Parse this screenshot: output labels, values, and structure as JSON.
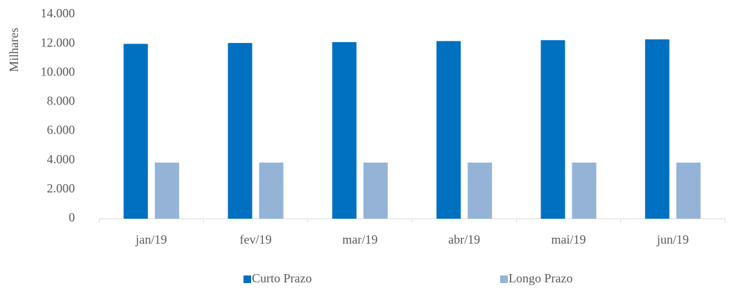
{
  "chart_data": {
    "type": "bar",
    "y_label": "Milhares",
    "categories": [
      "jan/19",
      "fev/19",
      "mar/19",
      "abr/19",
      "mai/19",
      "jun/19"
    ],
    "series": [
      {
        "name": "Curto Prazo",
        "color": "#0070c0",
        "values": [
          11990,
          12050,
          12110,
          12180,
          12240,
          12300
        ]
      },
      {
        "name": "Longo Prazo",
        "color": "#95b3d7",
        "values": [
          3850,
          3850,
          3850,
          3850,
          3850,
          3850
        ]
      }
    ],
    "ylim": [
      0,
      14000
    ],
    "yticks": [
      0,
      {
        "value": 2000,
        "label": "2.000"
      },
      {
        "value": 4000,
        "label": "4.000"
      },
      {
        "value": 6000,
        "label": "6.000"
      },
      {
        "value": 8000,
        "label": "8.000"
      },
      {
        "value": 10000,
        "label": "10.000"
      },
      {
        "value": 12000,
        "label": "12.000"
      },
      {
        "value": 14000,
        "label": "14.000"
      }
    ],
    "grid": false,
    "legend": "bottom"
  }
}
